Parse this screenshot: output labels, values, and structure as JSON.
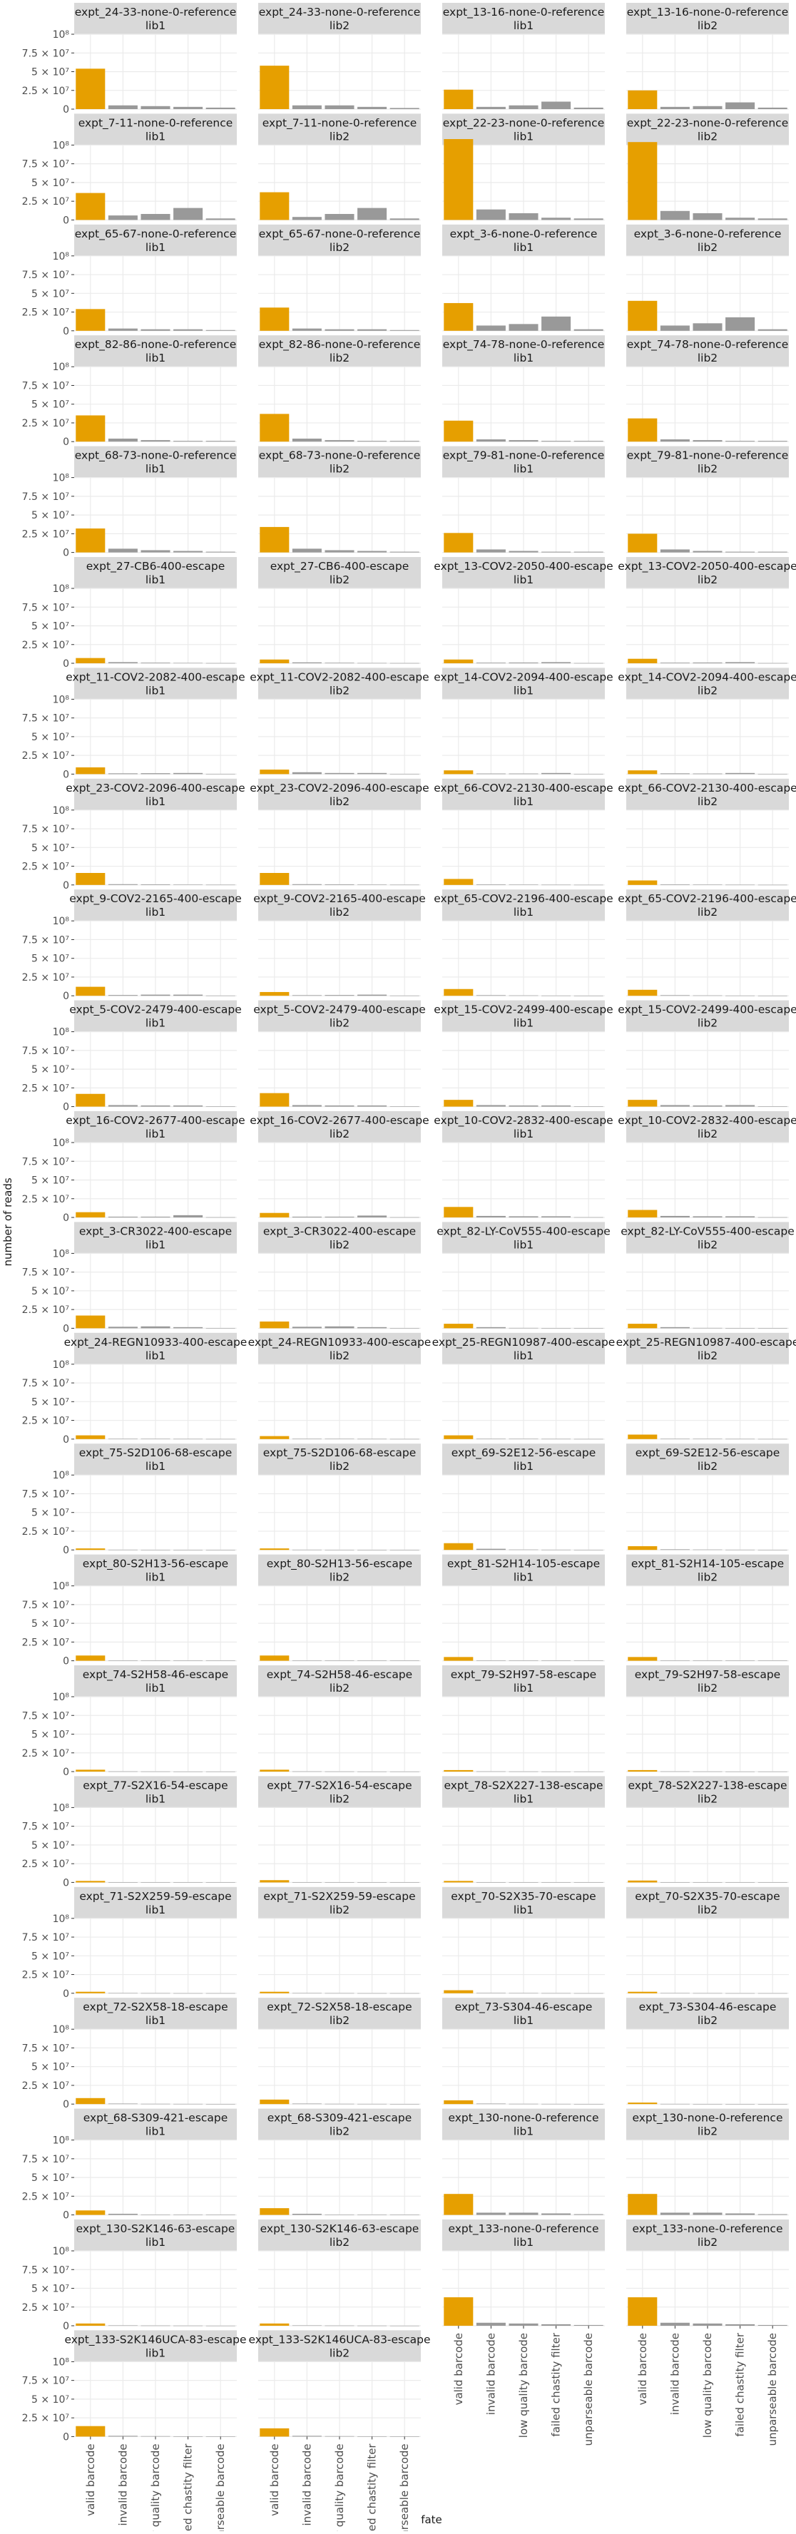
{
  "chart_data": {
    "type": "bar",
    "xlabel": "fate",
    "ylabel": "number of reads",
    "ylim": [
      0,
      100000000
    ],
    "y_ticks": [
      {
        "value": 0,
        "label": "0"
      },
      {
        "value": 25000000,
        "label": "2.5 × 10⁷"
      },
      {
        "value": 50000000,
        "label": "5 × 10⁷"
      },
      {
        "value": 75000000,
        "label": "7.5 × 10⁷"
      },
      {
        "value": 100000000,
        "label": "10⁸"
      }
    ],
    "categories": [
      "valid barcode",
      "invalid barcode",
      "low quality barcode",
      "failed chastity filter",
      "unparseable barcode"
    ],
    "colors": {
      "valid": "#E69F00",
      "other": "#999999",
      "strip": "#D9D9D9",
      "grid": "#EBEBEB",
      "axis_text": "#4D4D4D"
    },
    "facets": [
      {
        "title": "expt_24-33-none-0-reference",
        "lib": "lib1",
        "values": [
          54000000,
          5000000,
          4000000,
          3000000,
          2000000
        ]
      },
      {
        "title": "expt_24-33-none-0-reference",
        "lib": "lib2",
        "values": [
          58000000,
          5000000,
          5000000,
          3000000,
          1500000
        ]
      },
      {
        "title": "expt_13-16-none-0-reference",
        "lib": "lib1",
        "values": [
          26000000,
          3000000,
          5000000,
          10000000,
          2000000
        ]
      },
      {
        "title": "expt_13-16-none-0-reference",
        "lib": "lib2",
        "values": [
          25000000,
          3000000,
          4000000,
          9000000,
          2000000
        ]
      },
      {
        "title": "expt_7-11-none-0-reference",
        "lib": "lib1",
        "values": [
          36000000,
          6000000,
          8000000,
          16000000,
          2000000
        ]
      },
      {
        "title": "expt_7-11-none-0-reference",
        "lib": "lib2",
        "values": [
          37000000,
          4000000,
          8000000,
          16000000,
          2000000
        ]
      },
      {
        "title": "expt_22-23-none-0-reference",
        "lib": "lib1",
        "values": [
          108000000,
          14000000,
          9000000,
          3000000,
          2000000
        ]
      },
      {
        "title": "expt_22-23-none-0-reference",
        "lib": "lib2",
        "values": [
          104000000,
          12000000,
          9000000,
          3000000,
          2000000
        ]
      },
      {
        "title": "expt_65-67-none-0-reference",
        "lib": "lib1",
        "values": [
          29000000,
          3000000,
          2000000,
          2000000,
          1000000
        ]
      },
      {
        "title": "expt_65-67-none-0-reference",
        "lib": "lib2",
        "values": [
          31000000,
          3000000,
          2000000,
          2000000,
          1000000
        ]
      },
      {
        "title": "expt_3-6-none-0-reference",
        "lib": "lib1",
        "values": [
          37000000,
          7000000,
          9000000,
          19000000,
          2000000
        ]
      },
      {
        "title": "expt_3-6-none-0-reference",
        "lib": "lib2",
        "values": [
          40000000,
          7000000,
          10000000,
          18000000,
          2000000
        ]
      },
      {
        "title": "expt_82-86-none-0-reference",
        "lib": "lib1",
        "values": [
          35000000,
          4000000,
          2000000,
          1000000,
          1000000
        ]
      },
      {
        "title": "expt_82-86-none-0-reference",
        "lib": "lib2",
        "values": [
          37000000,
          4000000,
          2000000,
          1000000,
          1000000
        ]
      },
      {
        "title": "expt_74-78-none-0-reference",
        "lib": "lib1",
        "values": [
          28000000,
          3000000,
          2000000,
          1000000,
          1000000
        ]
      },
      {
        "title": "expt_74-78-none-0-reference",
        "lib": "lib2",
        "values": [
          31000000,
          3000000,
          2000000,
          1000000,
          1000000
        ]
      },
      {
        "title": "expt_68-73-none-0-reference",
        "lib": "lib1",
        "values": [
          32000000,
          5000000,
          3000000,
          2000000,
          1000000
        ]
      },
      {
        "title": "expt_68-73-none-0-reference",
        "lib": "lib2",
        "values": [
          34000000,
          5000000,
          3000000,
          2000000,
          1000000
        ]
      },
      {
        "title": "expt_79-81-none-0-reference",
        "lib": "lib1",
        "values": [
          26000000,
          4000000,
          2000000,
          1000000,
          1000000
        ]
      },
      {
        "title": "expt_79-81-none-0-reference",
        "lib": "lib2",
        "values": [
          25000000,
          4000000,
          2000000,
          1000000,
          1000000
        ]
      },
      {
        "title": "expt_27-CB6-400-escape",
        "lib": "lib1",
        "values": [
          7000000,
          1500000,
          800000,
          500000,
          300000
        ]
      },
      {
        "title": "expt_27-CB6-400-escape",
        "lib": "lib2",
        "values": [
          5000000,
          1200000,
          700000,
          400000,
          300000
        ]
      },
      {
        "title": "expt_13-COV2-2050-400-escape",
        "lib": "lib1",
        "values": [
          5000000,
          800000,
          1000000,
          1500000,
          300000
        ]
      },
      {
        "title": "expt_13-COV2-2050-400-escape",
        "lib": "lib2",
        "values": [
          6000000,
          800000,
          1000000,
          1500000,
          300000
        ]
      },
      {
        "title": "expt_11-COV2-2082-400-escape",
        "lib": "lib1",
        "values": [
          9000000,
          1000000,
          1200000,
          1500000,
          300000
        ]
      },
      {
        "title": "expt_11-COV2-2082-400-escape",
        "lib": "lib2",
        "values": [
          6000000,
          2500000,
          1500000,
          1500000,
          300000
        ]
      },
      {
        "title": "expt_14-COV2-2094-400-escape",
        "lib": "lib1",
        "values": [
          5000000,
          800000,
          800000,
          1500000,
          300000
        ]
      },
      {
        "title": "expt_14-COV2-2094-400-escape",
        "lib": "lib2",
        "values": [
          5000000,
          1000000,
          800000,
          1500000,
          300000
        ]
      },
      {
        "title": "expt_23-COV2-2096-400-escape",
        "lib": "lib1",
        "values": [
          16000000,
          1000000,
          800000,
          500000,
          300000
        ]
      },
      {
        "title": "expt_23-COV2-2096-400-escape",
        "lib": "lib2",
        "values": [
          16000000,
          1000000,
          800000,
          500000,
          300000
        ]
      },
      {
        "title": "expt_66-COV2-2130-400-escape",
        "lib": "lib1",
        "values": [
          8000000,
          700000,
          500000,
          300000,
          200000
        ]
      },
      {
        "title": "expt_66-COV2-2130-400-escape",
        "lib": "lib2",
        "values": [
          6000000,
          700000,
          500000,
          300000,
          200000
        ]
      },
      {
        "title": "expt_9-COV2-2165-400-escape",
        "lib": "lib1",
        "values": [
          12000000,
          1000000,
          1500000,
          1500000,
          300000
        ]
      },
      {
        "title": "expt_9-COV2-2165-400-escape",
        "lib": "lib2",
        "values": [
          5000000,
          800000,
          1000000,
          1500000,
          300000
        ]
      },
      {
        "title": "expt_65-COV2-2196-400-escape",
        "lib": "lib1",
        "values": [
          9000000,
          800000,
          500000,
          300000,
          200000
        ]
      },
      {
        "title": "expt_65-COV2-2196-400-escape",
        "lib": "lib2",
        "values": [
          8000000,
          800000,
          500000,
          300000,
          200000
        ]
      },
      {
        "title": "expt_5-COV2-2479-400-escape",
        "lib": "lib1",
        "values": [
          17000000,
          2000000,
          1500000,
          1500000,
          300000
        ]
      },
      {
        "title": "expt_5-COV2-2479-400-escape",
        "lib": "lib2",
        "values": [
          18000000,
          2000000,
          1500000,
          1500000,
          300000
        ]
      },
      {
        "title": "expt_15-COV2-2499-400-escape",
        "lib": "lib1",
        "values": [
          9000000,
          2000000,
          1500000,
          1500000,
          300000
        ]
      },
      {
        "title": "expt_15-COV2-2499-400-escape",
        "lib": "lib2",
        "values": [
          9000000,
          2000000,
          1500000,
          2000000,
          300000
        ]
      },
      {
        "title": "expt_16-COV2-2677-400-escape",
        "lib": "lib1",
        "values": [
          7000000,
          1000000,
          1000000,
          3000000,
          300000
        ]
      },
      {
        "title": "expt_16-COV2-2677-400-escape",
        "lib": "lib2",
        "values": [
          6000000,
          1000000,
          1000000,
          2500000,
          300000
        ]
      },
      {
        "title": "expt_10-COV2-2832-400-escape",
        "lib": "lib1",
        "values": [
          14000000,
          2000000,
          1500000,
          1500000,
          300000
        ]
      },
      {
        "title": "expt_10-COV2-2832-400-escape",
        "lib": "lib2",
        "values": [
          10000000,
          2000000,
          1500000,
          1500000,
          300000
        ]
      },
      {
        "title": "expt_3-CR3022-400-escape",
        "lib": "lib1",
        "values": [
          17000000,
          2000000,
          2500000,
          1500000,
          300000
        ]
      },
      {
        "title": "expt_3-CR3022-400-escape",
        "lib": "lib2",
        "values": [
          9000000,
          2000000,
          2500000,
          1500000,
          300000
        ]
      },
      {
        "title": "expt_82-LY-CoV555-400-escape",
        "lib": "lib1",
        "values": [
          6000000,
          1500000,
          500000,
          300000,
          200000
        ]
      },
      {
        "title": "expt_82-LY-CoV555-400-escape",
        "lib": "lib2",
        "values": [
          6000000,
          1500000,
          500000,
          300000,
          200000
        ]
      },
      {
        "title": "expt_24-REGN10933-400-escape",
        "lib": "lib1",
        "values": [
          5000000,
          500000,
          400000,
          300000,
          200000
        ]
      },
      {
        "title": "expt_24-REGN10933-400-escape",
        "lib": "lib2",
        "values": [
          4000000,
          500000,
          400000,
          300000,
          200000
        ]
      },
      {
        "title": "expt_25-REGN10987-400-escape",
        "lib": "lib1",
        "values": [
          5000000,
          500000,
          400000,
          300000,
          200000
        ]
      },
      {
        "title": "expt_25-REGN10987-400-escape",
        "lib": "lib2",
        "values": [
          6000000,
          500000,
          400000,
          300000,
          200000
        ]
      },
      {
        "title": "expt_75-S2D106-68-escape",
        "lib": "lib1",
        "values": [
          2000000,
          300000,
          200000,
          100000,
          100000
        ]
      },
      {
        "title": "expt_75-S2D106-68-escape",
        "lib": "lib2",
        "values": [
          2000000,
          300000,
          200000,
          100000,
          100000
        ]
      },
      {
        "title": "expt_69-S2E12-56-escape",
        "lib": "lib1",
        "values": [
          9000000,
          1500000,
          500000,
          300000,
          200000
        ]
      },
      {
        "title": "expt_69-S2E12-56-escape",
        "lib": "lib2",
        "values": [
          5000000,
          800000,
          500000,
          300000,
          200000
        ]
      },
      {
        "title": "expt_80-S2H13-56-escape",
        "lib": "lib1",
        "values": [
          7000000,
          500000,
          400000,
          300000,
          200000
        ]
      },
      {
        "title": "expt_80-S2H13-56-escape",
        "lib": "lib2",
        "values": [
          7000000,
          500000,
          400000,
          300000,
          200000
        ]
      },
      {
        "title": "expt_81-S2H14-105-escape",
        "lib": "lib1",
        "values": [
          5000000,
          500000,
          400000,
          300000,
          200000
        ]
      },
      {
        "title": "expt_81-S2H14-105-escape",
        "lib": "lib2",
        "values": [
          5000000,
          500000,
          400000,
          300000,
          200000
        ]
      },
      {
        "title": "expt_74-S2H58-46-escape",
        "lib": "lib1",
        "values": [
          2500000,
          300000,
          200000,
          100000,
          100000
        ]
      },
      {
        "title": "expt_74-S2H58-46-escape",
        "lib": "lib2",
        "values": [
          2500000,
          300000,
          200000,
          100000,
          100000
        ]
      },
      {
        "title": "expt_79-S2H97-58-escape",
        "lib": "lib1",
        "values": [
          2000000,
          300000,
          200000,
          100000,
          100000
        ]
      },
      {
        "title": "expt_79-S2H97-58-escape",
        "lib": "lib2",
        "values": [
          2000000,
          300000,
          200000,
          100000,
          100000
        ]
      },
      {
        "title": "expt_77-S2X16-54-escape",
        "lib": "lib1",
        "values": [
          2000000,
          300000,
          200000,
          100000,
          100000
        ]
      },
      {
        "title": "expt_77-S2X16-54-escape",
        "lib": "lib2",
        "values": [
          3000000,
          300000,
          200000,
          100000,
          100000
        ]
      },
      {
        "title": "expt_78-S2X227-138-escape",
        "lib": "lib1",
        "values": [
          2000000,
          300000,
          200000,
          100000,
          100000
        ]
      },
      {
        "title": "expt_78-S2X227-138-escape",
        "lib": "lib2",
        "values": [
          2500000,
          300000,
          200000,
          100000,
          100000
        ]
      },
      {
        "title": "expt_71-S2X259-59-escape",
        "lib": "lib1",
        "values": [
          2000000,
          300000,
          200000,
          100000,
          100000
        ]
      },
      {
        "title": "expt_71-S2X259-59-escape",
        "lib": "lib2",
        "values": [
          2000000,
          300000,
          200000,
          100000,
          100000
        ]
      },
      {
        "title": "expt_70-S2X35-70-escape",
        "lib": "lib1",
        "values": [
          4000000,
          500000,
          300000,
          200000,
          100000
        ]
      },
      {
        "title": "expt_70-S2X35-70-escape",
        "lib": "lib2",
        "values": [
          2000000,
          300000,
          200000,
          100000,
          100000
        ]
      },
      {
        "title": "expt_72-S2X58-18-escape",
        "lib": "lib1",
        "values": [
          8000000,
          700000,
          400000,
          300000,
          200000
        ]
      },
      {
        "title": "expt_72-S2X58-18-escape",
        "lib": "lib2",
        "values": [
          6000000,
          700000,
          400000,
          300000,
          200000
        ]
      },
      {
        "title": "expt_73-S304-46-escape",
        "lib": "lib1",
        "values": [
          5000000,
          700000,
          400000,
          300000,
          200000
        ]
      },
      {
        "title": "expt_73-S304-46-escape",
        "lib": "lib2",
        "values": [
          2000000,
          300000,
          200000,
          100000,
          100000
        ]
      },
      {
        "title": "expt_68-S309-421-escape",
        "lib": "lib1",
        "values": [
          6000000,
          1500000,
          500000,
          300000,
          200000
        ]
      },
      {
        "title": "expt_68-S309-421-escape",
        "lib": "lib2",
        "values": [
          9000000,
          1500000,
          500000,
          300000,
          200000
        ]
      },
      {
        "title": "expt_130-none-0-reference",
        "lib": "lib1",
        "values": [
          28000000,
          3000000,
          3000000,
          2000000,
          1000000
        ]
      },
      {
        "title": "expt_130-none-0-reference",
        "lib": "lib2",
        "values": [
          28000000,
          3000000,
          3000000,
          2000000,
          1000000
        ]
      },
      {
        "title": "expt_130-S2K146-63-escape",
        "lib": "lib1",
        "values": [
          3000000,
          500000,
          300000,
          200000,
          100000
        ]
      },
      {
        "title": "expt_130-S2K146-63-escape",
        "lib": "lib2",
        "values": [
          3000000,
          500000,
          300000,
          200000,
          100000
        ]
      },
      {
        "title": "expt_133-none-0-reference",
        "lib": "lib1",
        "values": [
          38000000,
          4000000,
          3000000,
          2000000,
          1000000
        ]
      },
      {
        "title": "expt_133-none-0-reference",
        "lib": "lib2",
        "values": [
          38000000,
          4000000,
          3000000,
          2000000,
          1000000
        ]
      },
      {
        "title": "expt_133-S2K146UCA-83-escape",
        "lib": "lib1",
        "values": [
          14000000,
          1000000,
          600000,
          400000,
          200000
        ]
      },
      {
        "title": "expt_133-S2K146UCA-83-escape",
        "lib": "lib2",
        "values": [
          11000000,
          1000000,
          600000,
          400000,
          200000
        ]
      }
    ]
  }
}
